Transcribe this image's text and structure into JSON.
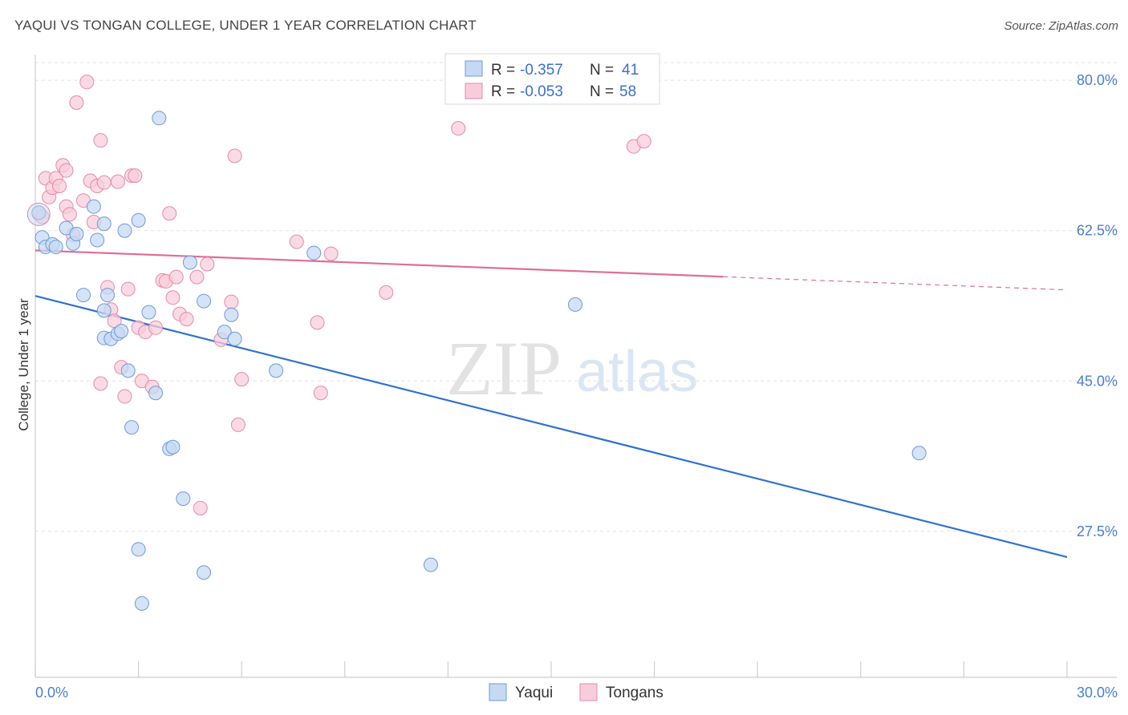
{
  "title": "YAQUI VS TONGAN COLLEGE, UNDER 1 YEAR CORRELATION CHART",
  "source": "Source: ZipAtlas.com",
  "watermark": {
    "zip": "ZIP",
    "atlas": "atlas"
  },
  "colors": {
    "yaqui_fill": "#c5d9f3",
    "yaqui_stroke": "#6d9bd8",
    "yaqui_line": "#2f72d0",
    "tongan_fill": "#f8cddb",
    "tongan_stroke": "#e48aa8",
    "tongan_line": "#e06d96",
    "grid": "#e2e2e2",
    "axis_text": "#4a7fcf"
  },
  "legend": {
    "rows": [
      {
        "r_label": "R =",
        "r_value": "-0.357",
        "n_label": "N =",
        "n_value": "41"
      },
      {
        "r_label": "R =",
        "r_value": "-0.053",
        "n_label": "N =",
        "n_value": "58"
      }
    ]
  },
  "chart_data": {
    "type": "scatter",
    "title": "YAQUI VS TONGAN COLLEGE, UNDER 1 YEAR CORRELATION CHART",
    "xlabel": "",
    "ylabel": "College, Under 1 year",
    "xlim": [
      0,
      30
    ],
    "ylim": [
      10.5,
      83
    ],
    "x_tick_labels": [
      {
        "value": 0,
        "label": "0.0%"
      },
      {
        "value": 30,
        "label": "30.0%"
      }
    ],
    "x_minor_ticks": [
      0,
      3,
      6,
      9,
      12,
      15,
      18,
      21,
      24,
      27,
      30
    ],
    "y_ticks": [
      {
        "value": 80,
        "label": "80.0%"
      },
      {
        "value": 62.5,
        "label": "62.5%"
      },
      {
        "value": 45,
        "label": "45.0%"
      },
      {
        "value": 27.5,
        "label": "27.5%"
      }
    ],
    "grid": true,
    "legend_position": "top-center",
    "series": [
      {
        "name": "Yaqui",
        "r": -0.357,
        "n": 41,
        "trend": {
          "x0": 0,
          "y0": 54.9,
          "x1": 30,
          "y1": 24.5,
          "solid_until": 30
        },
        "points": [
          [
            0.1,
            64.6
          ],
          [
            0.2,
            61.7
          ],
          [
            0.3,
            60.6
          ],
          [
            0.5,
            60.9
          ],
          [
            0.6,
            60.6
          ],
          [
            0.9,
            62.8
          ],
          [
            1.1,
            61.0
          ],
          [
            1.2,
            62.1
          ],
          [
            1.4,
            55.0
          ],
          [
            1.7,
            65.3
          ],
          [
            1.8,
            61.4
          ],
          [
            2.0,
            63.3
          ],
          [
            2.0,
            53.2
          ],
          [
            2.0,
            50.0
          ],
          [
            2.1,
            55.0
          ],
          [
            2.2,
            49.9
          ],
          [
            2.4,
            50.5
          ],
          [
            2.5,
            50.8
          ],
          [
            2.6,
            62.5
          ],
          [
            2.7,
            46.2
          ],
          [
            2.8,
            39.6
          ],
          [
            3.0,
            63.7
          ],
          [
            3.0,
            25.4
          ],
          [
            3.1,
            19.1
          ],
          [
            3.3,
            53.0
          ],
          [
            3.5,
            43.6
          ],
          [
            3.6,
            75.6
          ],
          [
            3.9,
            37.1
          ],
          [
            4.0,
            37.3
          ],
          [
            4.3,
            31.3
          ],
          [
            4.5,
            58.8
          ],
          [
            4.9,
            22.7
          ],
          [
            5.5,
            50.7
          ],
          [
            5.7,
            52.7
          ],
          [
            5.8,
            49.9
          ],
          [
            7.0,
            46.2
          ],
          [
            8.1,
            59.9
          ],
          [
            11.5,
            23.6
          ],
          [
            15.7,
            53.9
          ],
          [
            25.7,
            36.6
          ],
          [
            4.9,
            54.3
          ]
        ]
      },
      {
        "name": "Tongans",
        "r": -0.053,
        "n": 58,
        "trend": {
          "x0": 0,
          "y0": 60.2,
          "x1": 30,
          "y1": 55.6,
          "solid_until": 20
        },
        "points": [
          [
            0.1,
            64.5
          ],
          [
            0.2,
            64.1
          ],
          [
            0.3,
            68.6
          ],
          [
            0.4,
            66.4
          ],
          [
            0.5,
            67.5
          ],
          [
            0.6,
            68.6
          ],
          [
            0.7,
            67.7
          ],
          [
            0.8,
            70.1
          ],
          [
            0.9,
            65.3
          ],
          [
            1.0,
            64.4
          ],
          [
            1.1,
            62.0
          ],
          [
            1.2,
            77.4
          ],
          [
            1.4,
            66.0
          ],
          [
            1.5,
            79.8
          ],
          [
            1.6,
            68.3
          ],
          [
            1.7,
            63.5
          ],
          [
            1.8,
            67.7
          ],
          [
            1.9,
            73.0
          ],
          [
            2.0,
            68.1
          ],
          [
            2.1,
            55.9
          ],
          [
            2.2,
            53.3
          ],
          [
            2.3,
            52.0
          ],
          [
            2.4,
            68.2
          ],
          [
            2.5,
            46.6
          ],
          [
            2.6,
            43.2
          ],
          [
            2.7,
            55.7
          ],
          [
            2.8,
            68.9
          ],
          [
            2.9,
            68.9
          ],
          [
            3.0,
            51.2
          ],
          [
            3.1,
            45.0
          ],
          [
            3.2,
            50.7
          ],
          [
            3.4,
            44.3
          ],
          [
            3.7,
            56.7
          ],
          [
            3.8,
            56.6
          ],
          [
            3.9,
            64.5
          ],
          [
            4.0,
            54.7
          ],
          [
            4.1,
            57.1
          ],
          [
            4.2,
            52.8
          ],
          [
            4.4,
            52.2
          ],
          [
            4.7,
            57.1
          ],
          [
            4.8,
            30.2
          ],
          [
            5.0,
            58.6
          ],
          [
            5.4,
            49.8
          ],
          [
            5.7,
            54.2
          ],
          [
            5.8,
            71.2
          ],
          [
            5.9,
            39.9
          ],
          [
            6.0,
            45.2
          ],
          [
            7.6,
            61.2
          ],
          [
            8.2,
            51.8
          ],
          [
            8.3,
            43.6
          ],
          [
            8.6,
            59.8
          ],
          [
            10.2,
            55.3
          ],
          [
            12.3,
            74.4
          ],
          [
            17.4,
            72.3
          ],
          [
            17.7,
            72.9
          ],
          [
            1.9,
            44.7
          ],
          [
            0.9,
            69.5
          ],
          [
            3.5,
            51.2
          ]
        ]
      }
    ]
  }
}
